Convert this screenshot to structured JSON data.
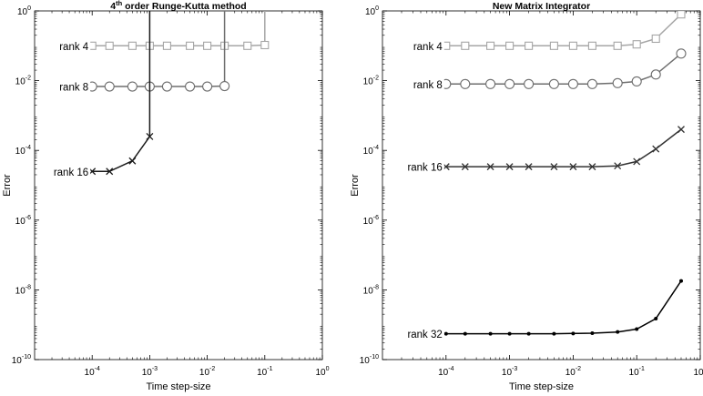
{
  "chart_data": [
    {
      "type": "line",
      "title": "order Runge-Kutta method",
      "title_prefix": "4",
      "title_sup": "th",
      "xlabel": "Time step-size",
      "ylabel": "Error",
      "xscale": "log",
      "yscale": "log",
      "xlim": [
        1e-05,
        1
      ],
      "ylim": [
        1e-10,
        1
      ],
      "x_ticks": [
        {
          "value": 0.0001,
          "base": "10",
          "exp": "-4"
        },
        {
          "value": 0.001,
          "base": "10",
          "exp": "-3"
        },
        {
          "value": 0.01,
          "base": "10",
          "exp": "-2"
        },
        {
          "value": 0.1,
          "base": "10",
          "exp": "-1"
        },
        {
          "value": 1,
          "base": "10",
          "exp": "0"
        }
      ],
      "y_ticks": [
        {
          "value": 1e-10,
          "base": "10",
          "exp": "-10"
        },
        {
          "value": 1e-08,
          "base": "10",
          "exp": "-8"
        },
        {
          "value": 1e-06,
          "base": "10",
          "exp": "-6"
        },
        {
          "value": 0.0001,
          "base": "10",
          "exp": "-4"
        },
        {
          "value": 0.01,
          "base": "10",
          "exp": "-2"
        },
        {
          "value": 1,
          "base": "10",
          "exp": "0"
        }
      ],
      "grid": false,
      "series": [
        {
          "name": "rank 4",
          "marker": "square",
          "color": "#a6a6a6",
          "label_anchor": {
            "x": 0.0001,
            "y": 0.1
          },
          "x": [
            0.0001,
            0.0002,
            0.0005,
            0.001,
            0.002,
            0.005,
            0.01,
            0.02,
            0.05,
            0.1,
            0.1
          ],
          "y": [
            0.1,
            0.1,
            0.1,
            0.1,
            0.1,
            0.1,
            0.1,
            0.1,
            0.1,
            0.105,
            1
          ]
        },
        {
          "name": "rank 8",
          "marker": "circle",
          "color": "#6e6e6e",
          "label_anchor": {
            "x": 0.0001,
            "y": 0.0068
          },
          "x": [
            0.0001,
            0.0002,
            0.0005,
            0.001,
            0.002,
            0.005,
            0.01,
            0.02,
            0.02
          ],
          "y": [
            0.0068,
            0.0068,
            0.0068,
            0.0068,
            0.0068,
            0.0068,
            0.0068,
            0.007,
            1
          ]
        },
        {
          "name": "rank 16",
          "marker": "x",
          "color": "#1a1a1a",
          "label_anchor": {
            "x": 0.0001,
            "y": 2.5e-05
          },
          "x": [
            0.0001,
            0.0002,
            0.0005,
            0.001,
            0.001
          ],
          "y": [
            2.5e-05,
            2.5e-05,
            5e-05,
            0.00025,
            1
          ]
        }
      ]
    },
    {
      "type": "line",
      "title": "New Matrix Integrator",
      "xlabel": "Time step-size",
      "ylabel": "Error",
      "xscale": "log",
      "yscale": "log",
      "xlim": [
        1e-05,
        1
      ],
      "ylim": [
        1e-10,
        1
      ],
      "x_ticks": [
        {
          "value": 0.0001,
          "base": "10",
          "exp": "-4"
        },
        {
          "value": 0.001,
          "base": "10",
          "exp": "-3"
        },
        {
          "value": 0.01,
          "base": "10",
          "exp": "-2"
        },
        {
          "value": 0.1,
          "base": "10",
          "exp": "-1"
        },
        {
          "value": 1,
          "base": "10",
          "exp": "0"
        }
      ],
      "y_ticks": [
        {
          "value": 1e-10,
          "base": "10",
          "exp": "-10"
        },
        {
          "value": 1e-08,
          "base": "10",
          "exp": "-8"
        },
        {
          "value": 1e-06,
          "base": "10",
          "exp": "-6"
        },
        {
          "value": 0.0001,
          "base": "10",
          "exp": "-4"
        },
        {
          "value": 0.01,
          "base": "10",
          "exp": "-2"
        },
        {
          "value": 1,
          "base": "10",
          "exp": "0"
        }
      ],
      "grid": false,
      "series": [
        {
          "name": "rank 4",
          "marker": "square",
          "color": "#a6a6a6",
          "label_anchor": {
            "x": 0.0001,
            "y": 0.1
          },
          "x": [
            0.0001,
            0.0002,
            0.0005,
            0.001,
            0.002,
            0.005,
            0.01,
            0.02,
            0.05,
            0.1,
            0.2,
            0.5
          ],
          "y": [
            0.1,
            0.1,
            0.1,
            0.1,
            0.1,
            0.1,
            0.1,
            0.1,
            0.1,
            0.11,
            0.16,
            0.8
          ]
        },
        {
          "name": "rank 8",
          "marker": "circle",
          "color": "#6e6e6e",
          "label_anchor": {
            "x": 0.0001,
            "y": 0.008
          },
          "x": [
            0.0001,
            0.0002,
            0.0005,
            0.001,
            0.002,
            0.005,
            0.01,
            0.02,
            0.05,
            0.1,
            0.2,
            0.5
          ],
          "y": [
            0.008,
            0.008,
            0.008,
            0.008,
            0.008,
            0.008,
            0.008,
            0.008,
            0.0085,
            0.0095,
            0.015,
            0.06
          ]
        },
        {
          "name": "rank 16",
          "marker": "x",
          "color": "#333333",
          "label_anchor": {
            "x": 0.0001,
            "y": 3.4e-05
          },
          "x": [
            0.0001,
            0.0002,
            0.0005,
            0.001,
            0.002,
            0.005,
            0.01,
            0.02,
            0.05,
            0.1,
            0.2,
            0.5
          ],
          "y": [
            3.4e-05,
            3.4e-05,
            3.4e-05,
            3.4e-05,
            3.4e-05,
            3.4e-05,
            3.4e-05,
            3.4e-05,
            3.6e-05,
            4.8e-05,
            0.00011,
            0.0004
          ]
        },
        {
          "name": "rank 32",
          "marker": "dot",
          "color": "#000000",
          "label_anchor": {
            "x": 0.0001,
            "y": 5.5e-10
          },
          "x": [
            0.0001,
            0.0002,
            0.0005,
            0.001,
            0.002,
            0.005,
            0.01,
            0.02,
            0.05,
            0.1,
            0.2,
            0.5
          ],
          "y": [
            5.5e-10,
            5.5e-10,
            5.5e-10,
            5.5e-10,
            5.5e-10,
            5.5e-10,
            5.6e-10,
            5.7e-10,
            6.2e-10,
            7.5e-10,
            1.5e-09,
            1.8e-08
          ]
        }
      ]
    }
  ]
}
